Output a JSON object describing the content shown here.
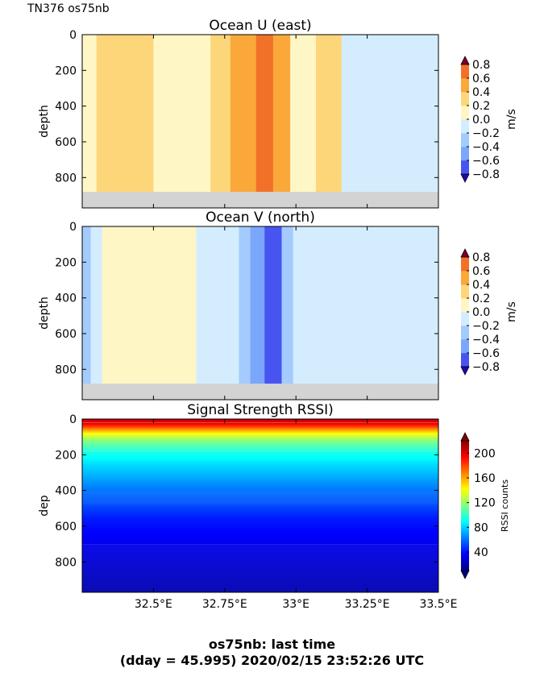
{
  "figure": {
    "corner_label": "TN376 os75nb",
    "footer_line1": "os75nb: last time",
    "footer_line2": "(dday = 45.995) 2020/02/15 23:52:26 UTC"
  },
  "chart_data": [
    {
      "type": "heatmap",
      "title": "Ocean U (east)",
      "ylabel": "depth",
      "xlabel": "",
      "xlim": [
        32.25,
        33.5
      ],
      "ylim": [
        970,
        0
      ],
      "yticks": [
        0,
        200,
        400,
        600,
        800
      ],
      "xticks": [
        32.5,
        32.75,
        33.0,
        33.25,
        33.5
      ],
      "xticklabels": [
        "",
        "",
        "",
        "",
        ""
      ],
      "colorbar": {
        "label": "m/s",
        "ticks": [
          -0.8,
          -0.6,
          -0.4,
          -0.2,
          0.0,
          0.2,
          0.4,
          0.6,
          0.8
        ],
        "ticklabels": [
          "−0.8",
          "−0.6",
          "−0.4",
          "−0.2",
          "0.0",
          "0.2",
          "0.4",
          "0.6",
          "0.8"
        ],
        "extend": "both"
      },
      "bands": [
        {
          "x": [
            32.25,
            32.3
          ],
          "value": 0.1
        },
        {
          "x": [
            32.3,
            32.5
          ],
          "value": 0.3
        },
        {
          "x": [
            32.5,
            32.7
          ],
          "value": 0.1
        },
        {
          "x": [
            32.7,
            32.77
          ],
          "value": 0.3
        },
        {
          "x": [
            32.77,
            32.86
          ],
          "value": 0.5
        },
        {
          "x": [
            32.86,
            32.92
          ],
          "value": 0.75
        },
        {
          "x": [
            32.92,
            32.98
          ],
          "value": 0.5
        },
        {
          "x": [
            32.98,
            33.07
          ],
          "value": 0.1
        },
        {
          "x": [
            33.07,
            33.16
          ],
          "value": 0.3
        },
        {
          "x": [
            33.16,
            33.5
          ],
          "value": -0.1
        }
      ],
      "bottom_mask_depth": 880
    },
    {
      "type": "heatmap",
      "title": "Ocean V (north)",
      "ylabel": "depth",
      "xlabel": "",
      "xlim": [
        32.25,
        33.5
      ],
      "ylim": [
        970,
        0
      ],
      "yticks": [
        0,
        200,
        400,
        600,
        800
      ],
      "xticks": [
        32.5,
        32.75,
        33.0,
        33.25,
        33.5
      ],
      "xticklabels": [
        "",
        "",
        "",
        "",
        ""
      ],
      "colorbar": {
        "label": "m/s",
        "ticks": [
          -0.8,
          -0.6,
          -0.4,
          -0.2,
          0.0,
          0.2,
          0.4,
          0.6,
          0.8
        ],
        "ticklabels": [
          "−0.8",
          "−0.6",
          "−0.4",
          "−0.2",
          "0.0",
          "0.2",
          "0.4",
          "0.6",
          "0.8"
        ],
        "extend": "both"
      },
      "bands": [
        {
          "x": [
            32.25,
            32.28
          ],
          "value": -0.3
        },
        {
          "x": [
            32.28,
            32.32
          ],
          "value": -0.1
        },
        {
          "x": [
            32.32,
            32.65
          ],
          "value": 0.1
        },
        {
          "x": [
            32.65,
            32.8
          ],
          "value": -0.1
        },
        {
          "x": [
            32.8,
            32.84
          ],
          "value": -0.3
        },
        {
          "x": [
            32.84,
            32.89
          ],
          "value": -0.5
        },
        {
          "x": [
            32.89,
            32.95
          ],
          "value": -0.7
        },
        {
          "x": [
            32.95,
            32.99
          ],
          "value": -0.3
        },
        {
          "x": [
            32.99,
            33.5
          ],
          "value": -0.1
        }
      ],
      "bottom_mask_depth": 880
    },
    {
      "type": "heatmap",
      "title": "Signal Strength RSSI)",
      "ylabel": "dep",
      "xlabel": "",
      "xlim": [
        32.25,
        33.5
      ],
      "ylim": [
        970,
        0
      ],
      "yticks": [
        0,
        200,
        400,
        600,
        800
      ],
      "xticks": [
        32.5,
        32.75,
        33.0,
        33.25,
        33.5
      ],
      "xticklabels": [
        "32.5°E",
        "32.75°E",
        "33°E",
        "33.25°E",
        "33.5°E"
      ],
      "colorbar": {
        "label": "RSSI counts",
        "ticks": [
          40,
          80,
          120,
          160,
          200
        ],
        "ticklabels": [
          "40",
          "80",
          "120",
          "160",
          "200"
        ],
        "range": [
          10,
          220
        ],
        "extend": "both"
      },
      "depth_profile": [
        {
          "depth": 0,
          "value": 205
        },
        {
          "depth": 20,
          "value": 200
        },
        {
          "depth": 50,
          "value": 170
        },
        {
          "depth": 80,
          "value": 140
        },
        {
          "depth": 120,
          "value": 115
        },
        {
          "depth": 180,
          "value": 95
        },
        {
          "depth": 250,
          "value": 82
        },
        {
          "depth": 320,
          "value": 72
        },
        {
          "depth": 400,
          "value": 60
        },
        {
          "depth": 480,
          "value": 52
        },
        {
          "depth": 550,
          "value": 42
        },
        {
          "depth": 700,
          "value": 32
        },
        {
          "depth": 970,
          "value": 20
        }
      ]
    }
  ]
}
